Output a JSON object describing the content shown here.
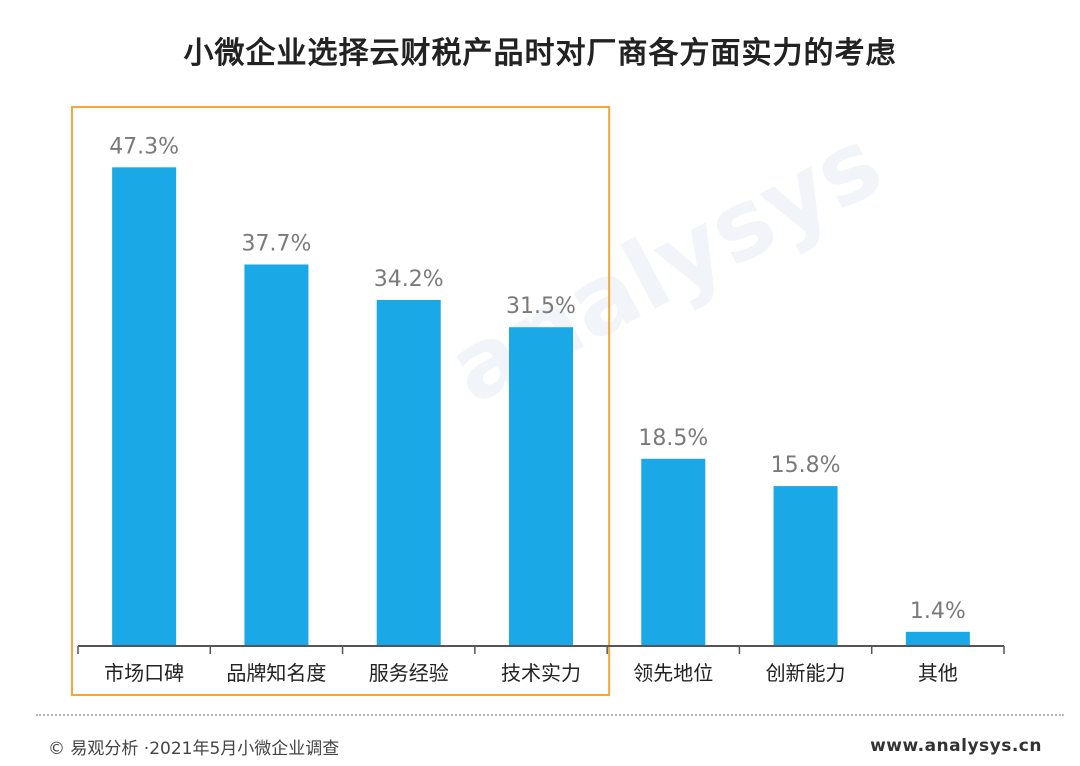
{
  "chart_data": {
    "type": "bar",
    "title": "小微企业选择云财税产品时对厂商各方面实力的考虑",
    "categories": [
      "市场口碑",
      "品牌知名度",
      "服务经验",
      "技术实力",
      "领先地位",
      "创新能力",
      "其他"
    ],
    "values": [
      47.3,
      37.7,
      34.2,
      31.5,
      18.5,
      15.8,
      1.4
    ],
    "value_labels": [
      "47.3%",
      "37.7%",
      "34.2%",
      "31.5%",
      "18.5%",
      "15.8%",
      "1.4%"
    ],
    "xlabel": "",
    "ylabel": "",
    "ylim": [
      0,
      50
    ],
    "grid": false,
    "legend": "none",
    "highlight_first_n": 4
  },
  "colors": {
    "bar": "#1aa8e6",
    "highlight_box": "#f0a838",
    "value_label": "#7a7a7a",
    "axis": "#555555"
  },
  "watermark": "analysys",
  "footer": {
    "source": "© 易观分析 ·2021年5月小微企业调查",
    "website": "www.analysys.cn"
  }
}
